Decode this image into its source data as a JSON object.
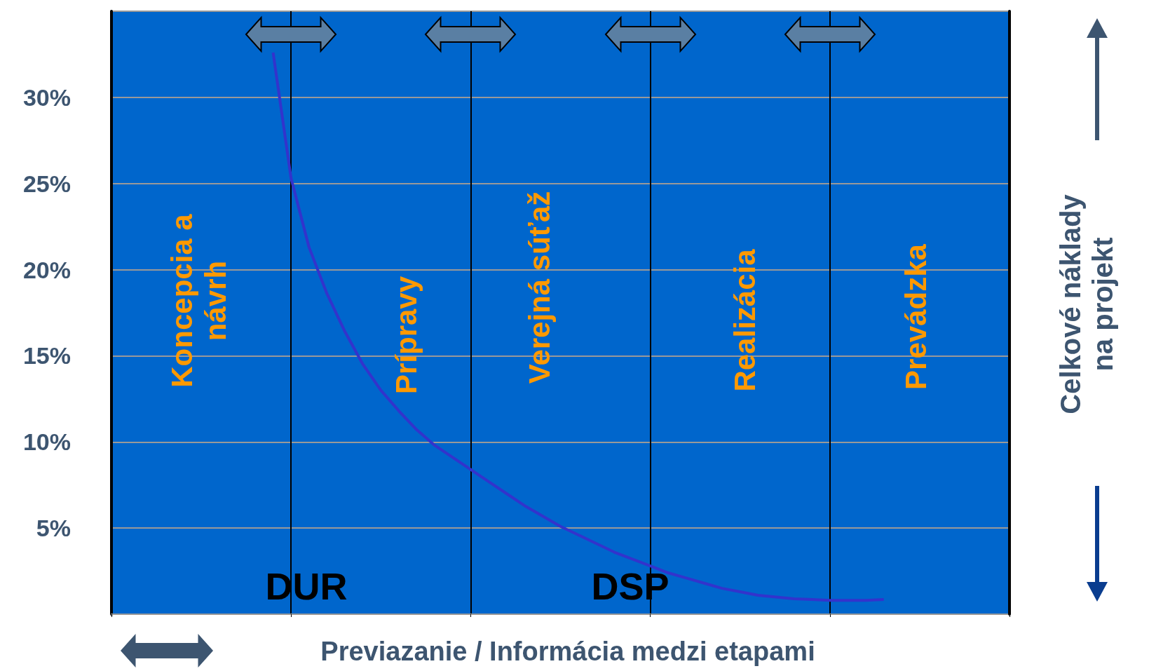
{
  "chart_data": {
    "type": "line",
    "categories": [
      null,
      null,
      null,
      null,
      null,
      null,
      null,
      null,
      null,
      null,
      null,
      null,
      null,
      null,
      null,
      null,
      null,
      null,
      null,
      null,
      null,
      null,
      null,
      null,
      null,
      null,
      null,
      null,
      null,
      null,
      null,
      null,
      null,
      null,
      null,
      null,
      null,
      null,
      null,
      null,
      null,
      null,
      null,
      null,
      null,
      null,
      null,
      null,
      null,
      null,
      null
    ],
    "series": [
      {
        "color": "#3333cc",
        "values": [
          null,
          null,
          null,
          null,
          null,
          null,
          null,
          null,
          null,
          32.6,
          25.3,
          21.3,
          18.6,
          16.4,
          14.5,
          13,
          11.8,
          10.7,
          9.8,
          9.1,
          8.4,
          7.7,
          7,
          6.3,
          5.7,
          5.1,
          4.6,
          4.1,
          3.6,
          3.2,
          2.8,
          2.4,
          2.1,
          1.8,
          1.5,
          1.3,
          1.1,
          1,
          0.9,
          0.85,
          0.8,
          0.8,
          0.8,
          0.85,
          null,
          null,
          null,
          null,
          null,
          null,
          null
        ]
      }
    ],
    "ylim": [
      0,
      35
    ],
    "yticks": [
      {
        "value": 0,
        "label": null
      },
      {
        "value": 5,
        "label": "5%"
      },
      {
        "value": 10,
        "label": "10%"
      },
      {
        "value": 15,
        "label": "15%"
      },
      {
        "value": 20,
        "label": "20%"
      },
      {
        "value": 25,
        "label": "25%"
      },
      {
        "value": 30,
        "label": "30%"
      },
      {
        "value": 35,
        "label": null
      }
    ],
    "tick_labels": "y",
    "grid": true,
    "marker": "none",
    "annotations": [
      "Koncepcia a návrh",
      "Prípravy",
      "Verejná súťaž",
      "Realizácia",
      "Prevádzka",
      "DUR",
      "DSP",
      "Previazanie / Informácia medzi etapami",
      "Celkové náklady na projekt"
    ]
  }
}
